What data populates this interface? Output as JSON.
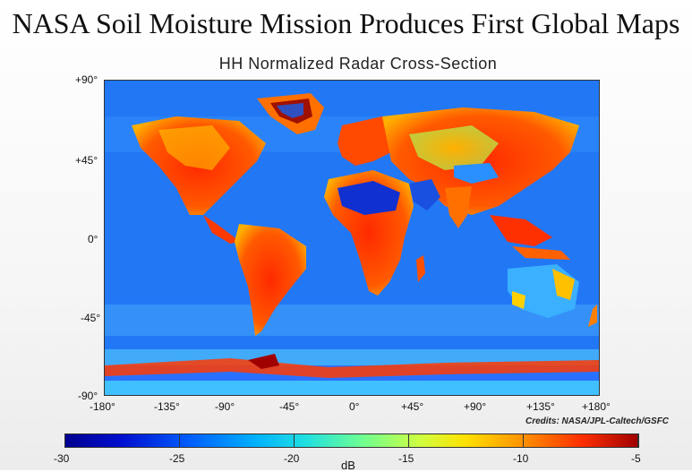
{
  "title": "NASA Soil Moisture Mission Produces First Global Maps",
  "subtitle": "HH Normalized Radar Cross-Section",
  "lat_labels": [
    "+90°",
    "+45°",
    "0°",
    "-45°",
    "-90°"
  ],
  "lon_labels": [
    "-180°",
    "-135°",
    "-90°",
    "-45°",
    "0°",
    "+45°",
    "+90°",
    "+135°",
    "+180°"
  ],
  "credits": "Credits: NASA/JPL-Caltech/GSFC",
  "colorbar": {
    "labels": [
      "-30",
      "-25",
      "-20",
      "-15",
      "-10",
      "-5"
    ],
    "unit": "dB",
    "min": -30,
    "max": -5
  },
  "colors": {
    "ocean": "#1f6ff0",
    "land_high": "#e83000",
    "land_mid": "#ffd000",
    "ice": "#c02000"
  }
}
